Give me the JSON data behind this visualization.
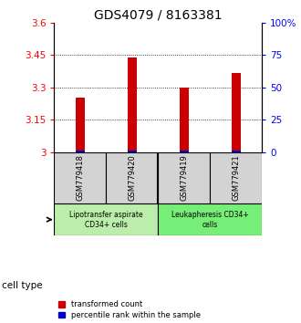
{
  "title": "GDS4079 / 8163381",
  "samples": [
    "GSM779418",
    "GSM779420",
    "GSM779419",
    "GSM779421"
  ],
  "red_values": [
    3.255,
    3.44,
    3.3,
    3.365
  ],
  "blue_values": [
    1.5,
    1.5,
    1.5,
    1.5
  ],
  "red_base": 3.0,
  "ylim_left": [
    3.0,
    3.6
  ],
  "ylim_right": [
    0,
    100
  ],
  "yticks_left": [
    3.0,
    3.15,
    3.3,
    3.45,
    3.6
  ],
  "ytick_labels_left": [
    "3",
    "3.15",
    "3.3",
    "3.45",
    "3.6"
  ],
  "yticks_right": [
    0,
    25,
    50,
    75,
    100
  ],
  "ytick_labels_right": [
    "0",
    "25",
    "50",
    "75",
    "100%"
  ],
  "gridlines": [
    3.15,
    3.3,
    3.45
  ],
  "cell_type_groups": [
    {
      "label": "Lipotransfer aspirate\nCD34+ cells",
      "indices": [
        0,
        1
      ],
      "color": "#bbeeaa"
    },
    {
      "label": "Leukapheresis CD34+\ncells",
      "indices": [
        2,
        3
      ],
      "color": "#77ee77"
    }
  ],
  "cell_type_label": "cell type",
  "legend_red": "transformed count",
  "legend_blue": "percentile rank within the sample",
  "bar_width": 0.18,
  "red_color": "#cc0000",
  "blue_color": "#0000cc",
  "sample_box_color": "#d3d3d3",
  "title_fontsize": 10,
  "tick_fontsize": 7.5,
  "label_fontsize": 7.5
}
